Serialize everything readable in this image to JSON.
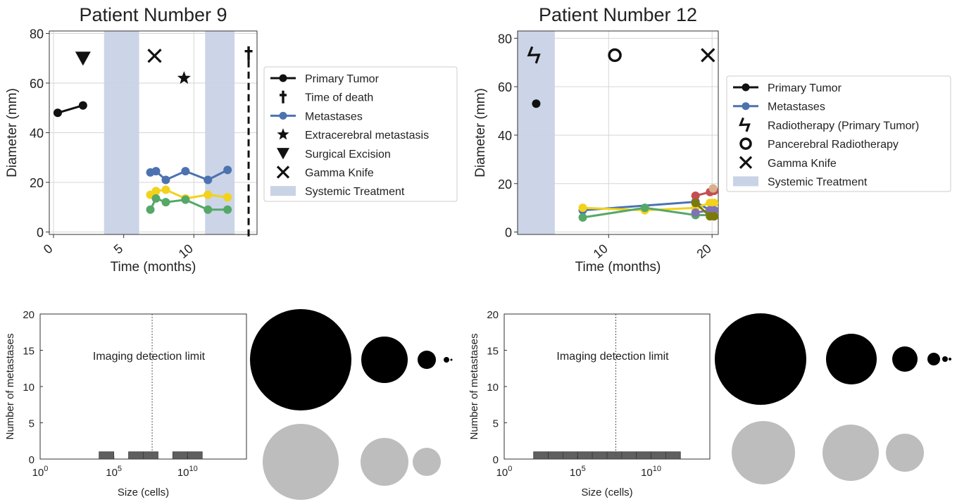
{
  "chart_data": [
    {
      "type": "line",
      "title": "Patient Number 9",
      "xlabel": "Time (months)",
      "ylabel": "Diameter (mm)",
      "xlim": [
        -0.3,
        14.5
      ],
      "ylim": [
        -1,
        81
      ],
      "xticks": [
        "0",
        "5",
        "10"
      ],
      "yticks": [
        "0",
        "20",
        "40",
        "60",
        "80"
      ],
      "grid": true,
      "legend_position": "right",
      "legend": [
        "Primary Tumor",
        "Time of death",
        "Metastases",
        "Extracerebral metastasis",
        "Surgical Excision",
        "Gamma Knife",
        "Systemic Treatment"
      ],
      "series": [
        {
          "name": "Primary Tumor",
          "color": "#111111",
          "x": [
            0.3,
            2.1
          ],
          "y": [
            48,
            51
          ]
        },
        {
          "name": "Metastases",
          "color": "#4c72b0",
          "x": [
            6.9,
            7.3,
            8.0,
            9.4,
            11.0,
            12.4
          ],
          "y": [
            24,
            24.5,
            21,
            24.5,
            21,
            25
          ]
        },
        {
          "color": "#f2d21b",
          "x": [
            6.9,
            7.3,
            8.0,
            9.4,
            11.0,
            12.4
          ],
          "y": [
            15,
            16.5,
            17,
            13.5,
            15,
            14
          ]
        },
        {
          "color": "#55a868",
          "x": [
            6.9,
            7.3,
            8.0,
            9.4,
            11.0,
            12.4
          ],
          "y": [
            9,
            13.5,
            12,
            13,
            9,
            9
          ]
        }
      ],
      "systemic_treatment_spans": [
        [
          3.6,
          6.1
        ],
        [
          10.8,
          12.9
        ]
      ],
      "events": [
        {
          "type": "surgical-excision",
          "x": 2.1,
          "y": 70
        },
        {
          "type": "gamma-knife",
          "x": 7.2,
          "y": 71
        },
        {
          "type": "extracerebral-metastasis",
          "x": 9.3,
          "y": 62
        },
        {
          "type": "time-of-death",
          "x": 13.9,
          "y": 72
        }
      ],
      "death_line_x": 13.9,
      "colors": {
        "shade": "#c9d3e6"
      }
    },
    {
      "type": "line",
      "title": "Patient Number 12",
      "xlabel": "Time (months)",
      "ylabel": "Diameter (mm)",
      "xlim": [
        1.2,
        20.6
      ],
      "ylim": [
        -1,
        83
      ],
      "xticks": [
        "10",
        "20"
      ],
      "yticks": [
        "0",
        "20",
        "40",
        "60",
        "80"
      ],
      "grid": true,
      "legend_position": "right",
      "legend": [
        "Primary Tumor",
        "Metastases",
        "Radiotherapy (Primary Tumor)",
        "Pancerebral Radiotherapy",
        "Gamma Knife",
        "Systemic Treatment"
      ],
      "series": [
        {
          "name": "Primary Tumor",
          "color": "#111111",
          "x": [
            3.0
          ],
          "y": [
            53
          ]
        },
        {
          "name": "Metastases",
          "color": "#4c72b0",
          "x": [
            7.5,
            18.4,
            19.8,
            20.2
          ],
          "y": [
            9,
            12.5,
            9,
            9
          ]
        },
        {
          "color": "#f2d21b",
          "x": [
            7.5,
            13.5,
            18.4,
            19.8,
            20.2
          ],
          "y": [
            10,
            9,
            10,
            12,
            12
          ]
        },
        {
          "color": "#55a868",
          "x": [
            7.5,
            13.5,
            18.4,
            19.8,
            20.2
          ],
          "y": [
            6,
            10,
            7,
            7,
            6.5
          ]
        },
        {
          "color": "#c44e52",
          "x": [
            18.4,
            19.8,
            20.2
          ],
          "y": [
            15,
            16.5,
            17
          ]
        },
        {
          "color": "#8172b3",
          "x": [
            18.4,
            19.8,
            20.2
          ],
          "y": [
            8,
            9,
            9
          ]
        },
        {
          "color": "#7a7a0a",
          "x": [
            18.4,
            19.8,
            20.2
          ],
          "y": [
            12,
            6.5,
            6.5
          ]
        },
        {
          "color": "#d8b08c",
          "x": [
            20.1
          ],
          "y": [
            18
          ]
        }
      ],
      "systemic_treatment_spans": [
        [
          1.2,
          4.8
        ]
      ],
      "events": [
        {
          "type": "radiotherapy-primary",
          "x": 2.9,
          "y": 73
        },
        {
          "type": "pancerebral-radiotherapy",
          "x": 10.6,
          "y": 73
        },
        {
          "type": "gamma-knife",
          "x": 19.6,
          "y": 73
        }
      ],
      "colors": {
        "shade": "#c9d3e6"
      }
    },
    {
      "type": "bar",
      "xlabel": "Size (cells)",
      "ylabel": "Number of metastases",
      "x_scale": "log",
      "xlim": [
        1,
        100000000000000.0
      ],
      "ylim": [
        0,
        20
      ],
      "xticks": [
        "10",
        "10",
        "10"
      ],
      "xtick_exponents": [
        "0",
        "5",
        "10"
      ],
      "yticks": [
        "0",
        "5",
        "10",
        "15",
        "20"
      ],
      "annotation": "Imaging detection limit",
      "detection_limit_log10": 7.6,
      "bins_log10": [
        [
          4.0,
          5.0
        ],
        [
          6.0,
          7.0
        ],
        [
          7.0,
          8.0
        ],
        [
          9.0,
          10.0
        ],
        [
          10.0,
          11.0
        ]
      ],
      "values": [
        1,
        1,
        1,
        1,
        1
      ],
      "bubbles": {
        "black_radii": [
          72,
          33,
          13,
          4,
          1.5
        ],
        "gray_radii": [
          54,
          34,
          20
        ]
      }
    },
    {
      "type": "bar",
      "xlabel": "Size (cells)",
      "ylabel": "Number of metastases",
      "x_scale": "log",
      "xlim": [
        1,
        100000000000000.0
      ],
      "ylim": [
        0,
        20
      ],
      "xticks": [
        "10",
        "10",
        "10"
      ],
      "xtick_exponents": [
        "0",
        "5",
        "10"
      ],
      "yticks": [
        "0",
        "5",
        "10",
        "15",
        "20"
      ],
      "annotation": "Imaging detection limit",
      "detection_limit_log10": 7.6,
      "bins_log10": [
        [
          2.0,
          3.0
        ],
        [
          3.0,
          4.0
        ],
        [
          4.0,
          5.0
        ],
        [
          5.0,
          6.0
        ],
        [
          6.0,
          7.0
        ],
        [
          7.0,
          8.0
        ],
        [
          8.0,
          9.0
        ],
        [
          9.0,
          10.0
        ],
        [
          10.0,
          11.0
        ],
        [
          11.0,
          12.0
        ]
      ],
      "values": [
        1,
        1,
        1,
        1,
        1,
        1,
        1,
        1,
        1,
        1
      ],
      "bubbles": {
        "black_radii": [
          65,
          36,
          18,
          9,
          4,
          2
        ],
        "gray_radii": [
          45,
          40,
          27
        ]
      }
    }
  ]
}
